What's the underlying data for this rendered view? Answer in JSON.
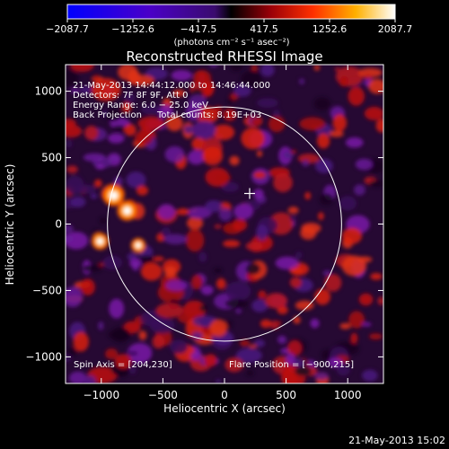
{
  "chart_data": {
    "type": "heatmap",
    "title": "Reconstructed RHESSI Image",
    "xlabel": "Heliocentric X (arcsec)",
    "ylabel": "Heliocentric Y (arcsec)",
    "xlim": [
      -1290,
      1290
    ],
    "ylim": [
      -1200,
      1200
    ],
    "xticks": [
      -1000,
      -500,
      0,
      500,
      1000
    ],
    "xtick_labels": [
      "−1000",
      "−500",
      "0",
      "500",
      "1000"
    ],
    "yticks": [
      -1000,
      -500,
      0,
      500,
      1000
    ],
    "ytick_labels": [
      "−1000",
      "−500",
      "0",
      "500",
      "1000"
    ],
    "colorbar": {
      "min": -2087.7,
      "max": 2087.7,
      "ticks": [
        -2087.7,
        -1252.6,
        -417.5,
        417.5,
        1252.6,
        2087.7
      ],
      "tick_labels": [
        "−2087.7",
        "−1252.6",
        "−417.5",
        "417.5",
        "1252.6",
        "2087.7"
      ],
      "unit_label": "(photons cm⁻² s⁻¹ asec⁻²)"
    },
    "annotations": {
      "time_range": "21‑May‑2013 14:44:12.000 to 14:46:44.000",
      "detectors": "Detectors: 7F 8F 9F, Att 0",
      "energy_range": "Energy Range: 6.0 − 25.0 keV",
      "method": "Back Projection",
      "total_counts": "Total counts: 8.19E+03",
      "spin_axis": "Spin Axis = [204,230]",
      "flare_position": "Flare Position = [−900,215]"
    },
    "solar_limb": {
      "center": [
        0,
        0
      ],
      "radius": 950
    },
    "spin_axis_marker": [
      204,
      230
    ],
    "bright_sources": [
      {
        "x": -900,
        "y": 215,
        "value": 2087.7
      },
      {
        "x": -790,
        "y": 100,
        "value": 1900
      },
      {
        "x": -1010,
        "y": -130,
        "value": 1500
      },
      {
        "x": -700,
        "y": -160,
        "value": 1200
      }
    ],
    "footer_timestamp": "21‑May‑2013 15:02"
  }
}
